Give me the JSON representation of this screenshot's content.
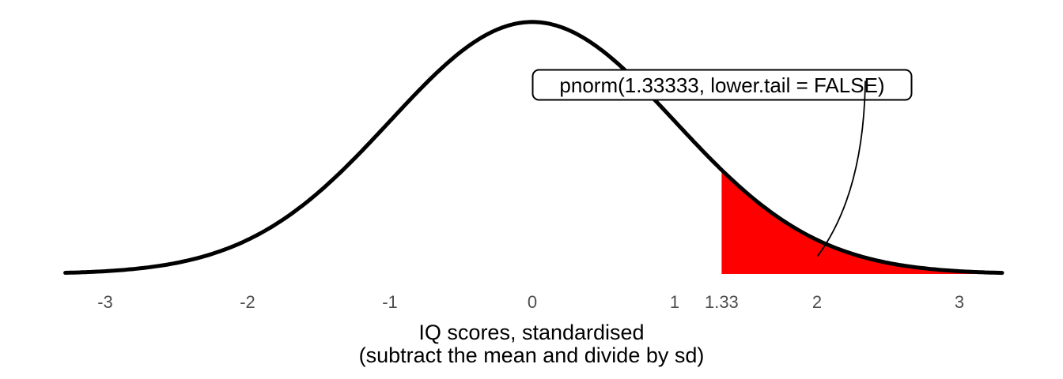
{
  "chart_data": {
    "type": "area",
    "title": "",
    "curve": {
      "shape": "normal-density",
      "mean": 0,
      "sd": 1
    },
    "x_range": [
      -3.28,
      3.3
    ],
    "y_range": [
      0,
      0.4
    ],
    "grid": false,
    "legend": "none",
    "series_sample": {
      "x": [
        -3,
        -2.5,
        -2,
        -1.5,
        -1,
        -0.5,
        0,
        0.5,
        1,
        1.33,
        1.5,
        2,
        2.5,
        3
      ],
      "density": [
        0.0044,
        0.0175,
        0.054,
        0.1295,
        0.242,
        0.3521,
        0.3989,
        0.3521,
        0.242,
        0.1647,
        0.1295,
        0.054,
        0.0175,
        0.0044
      ]
    },
    "x_ticks": [
      {
        "value": -3,
        "label": "-3"
      },
      {
        "value": -2,
        "label": "-2"
      },
      {
        "value": -1,
        "label": "-1"
      },
      {
        "value": 0,
        "label": "0"
      },
      {
        "value": 1,
        "label": "1"
      },
      {
        "value": 1.33,
        "label": "1.33"
      },
      {
        "value": 2,
        "label": "2"
      },
      {
        "value": 3,
        "label": "3"
      }
    ],
    "xlabel_line1": "IQ scores, standardised",
    "xlabel_line2": "(subtract the mean and divide by sd)",
    "shaded_tail": {
      "from": 1.33,
      "to": 3.3,
      "color": "#ff0000"
    },
    "annotation": {
      "label": "pnorm(1.33333, lower.tail = FALSE)"
    },
    "colors": {
      "curve": "#000000",
      "tick_label": "#4d4d4d",
      "axis_title": "#000000",
      "callout_border": "#000000",
      "callout_fill": "#ffffff",
      "background": "#ffffff"
    }
  }
}
